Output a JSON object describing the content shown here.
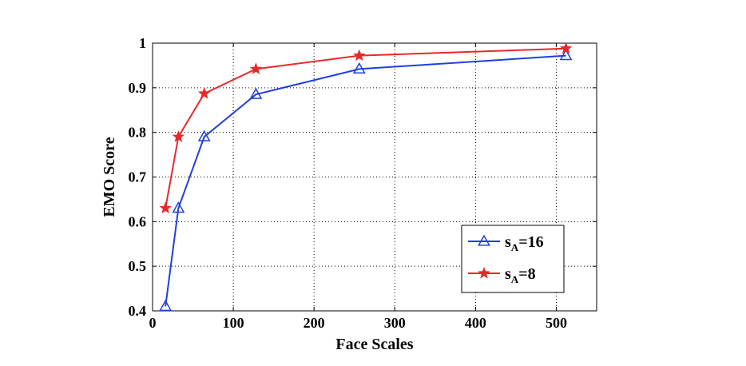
{
  "chart_data": {
    "type": "line",
    "title": "",
    "xlabel": "Face Scales",
    "ylabel": "EMO Score",
    "xlim": [
      0,
      550
    ],
    "ylim": [
      0.4,
      1.0
    ],
    "xticks": [
      0,
      100,
      200,
      300,
      400,
      500
    ],
    "yticks": [
      0.4,
      0.5,
      0.6,
      0.7,
      0.8,
      0.9,
      1.0
    ],
    "xtick_labels": [
      "0",
      "100",
      "200",
      "300",
      "400",
      "500"
    ],
    "ytick_labels": [
      "0.4",
      "0.5",
      "0.6",
      "0.7",
      "0.8",
      "0.9",
      "1"
    ],
    "grid": true,
    "legend_position": "bottom-right",
    "x": [
      16,
      32,
      64,
      128,
      256,
      512
    ],
    "series": [
      {
        "name": "s_A=16",
        "label_main": "s",
        "label_sub": "A",
        "label_rest": "=16",
        "color": "#1f3fdc",
        "marker": "triangle",
        "values": [
          0.41,
          0.63,
          0.79,
          0.885,
          0.942,
          0.972
        ]
      },
      {
        "name": "s_A=8",
        "label_main": "s",
        "label_sub": "A",
        "label_rest": "=8",
        "color": "#e8282a",
        "marker": "star",
        "values": [
          0.63,
          0.79,
          0.887,
          0.942,
          0.972,
          0.988
        ]
      }
    ]
  }
}
